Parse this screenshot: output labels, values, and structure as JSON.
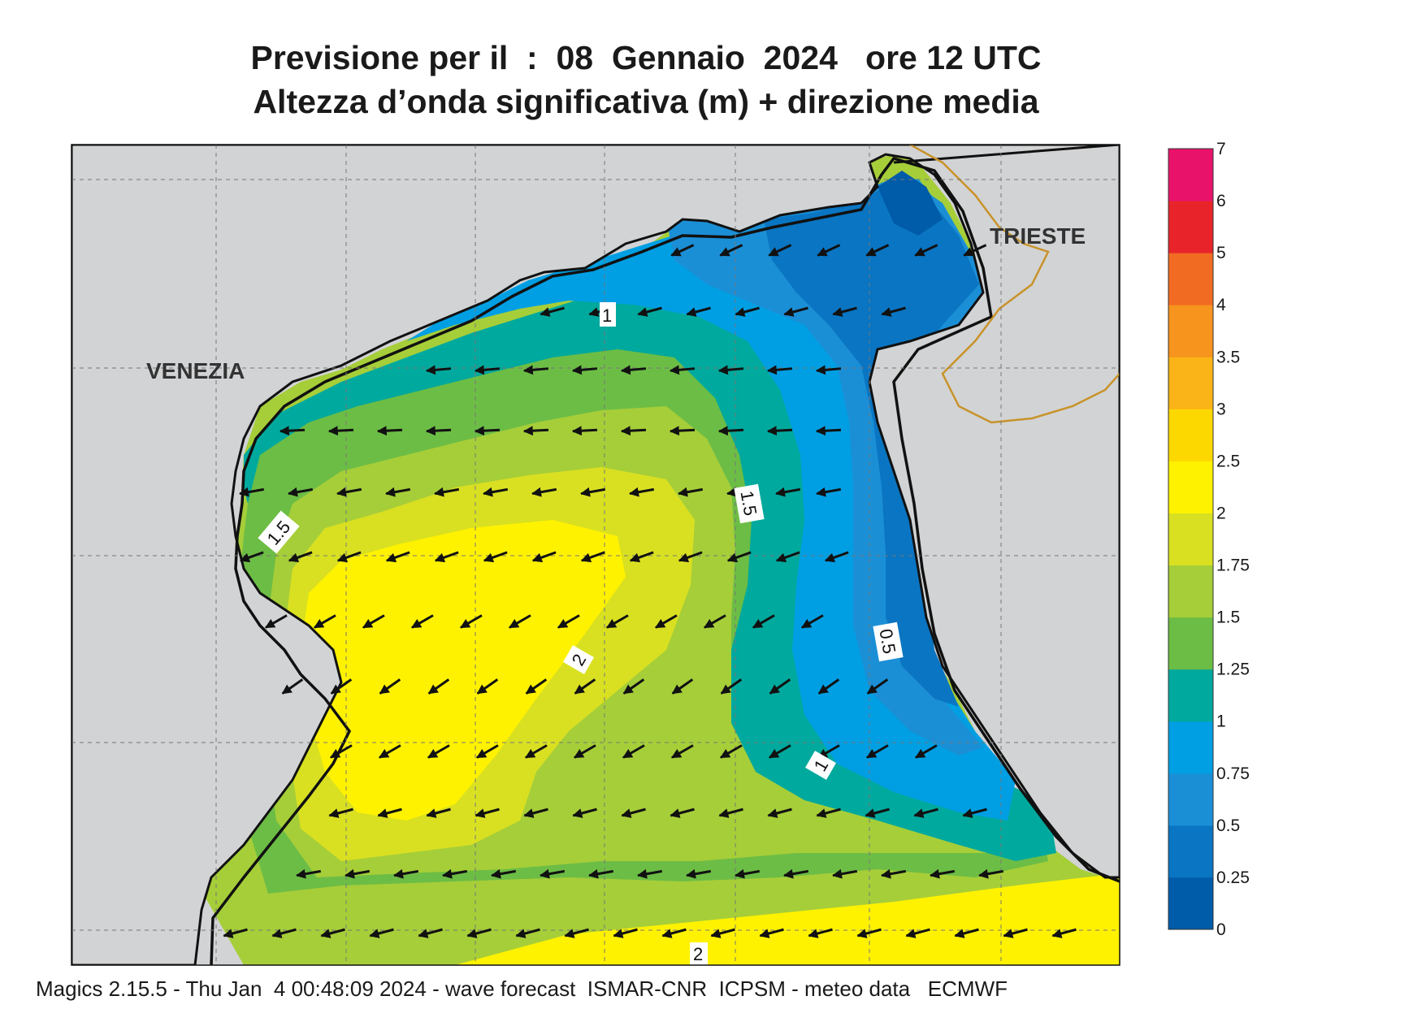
{
  "header": {
    "title_line1": "Previsione per il  :  08  Gennaio  2024   ore 12 UTC",
    "title_line2": "Altezza d’onda significativa (m) + direzione media"
  },
  "map": {
    "cities": [
      "VENEZIA",
      "TRIESTE"
    ],
    "contour_labels": [
      "1",
      "1.5",
      "1.5",
      "2",
      "0.5",
      "1",
      "2"
    ],
    "land_color": "#d2d3d4",
    "coast_color": "#111111",
    "border_color": "#c8932a"
  },
  "colorbar": {
    "labels": [
      "7",
      "6",
      "5",
      "4",
      "3.5",
      "3",
      "2.5",
      "2",
      "1.75",
      "1.5",
      "1.25",
      "1",
      "0.75",
      "0.5",
      "0.25",
      "0"
    ],
    "colors": [
      "#e8126b",
      "#e8242a",
      "#f26b22",
      "#f6941e",
      "#fbb417",
      "#fdd800",
      "#fff200",
      "#d9e021",
      "#a6ce39",
      "#6cbd45",
      "#00a99d",
      "#009fe3",
      "#1b8fd6",
      "#0a75c2",
      "#005ba9"
    ]
  },
  "footer": {
    "text": "Magics 2.15.5 - Thu Jan  4 00:48:09 2024 - wave forecast  ISMAR-CNR  ICPSM - meteo data   ECMWF"
  }
}
